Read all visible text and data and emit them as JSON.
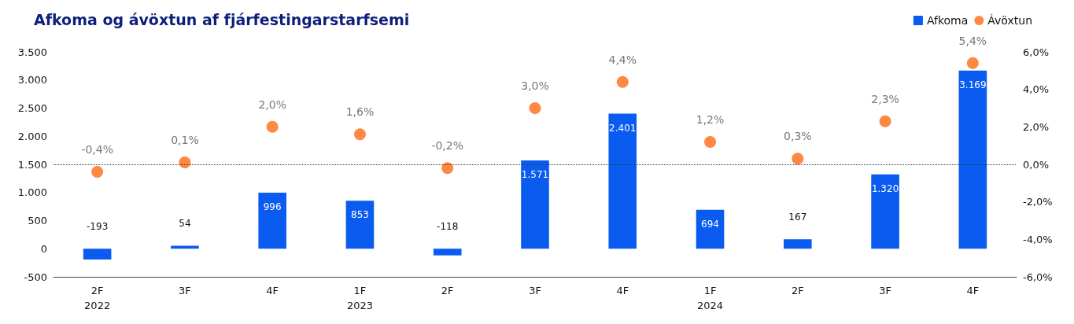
{
  "chart_data": {
    "type": "bar",
    "title": "Afkoma og ávöxtun af fjárfestingarstarfsemi",
    "categories": [
      "2F\n2022",
      "3F",
      "4F",
      "1F\n2023",
      "2F",
      "3F",
      "4F",
      "1F\n2024",
      "2F",
      "3F",
      "4F"
    ],
    "series": [
      {
        "name": "Afkoma",
        "color": "#0a5cf0",
        "values": [
          -193,
          54,
          996,
          853,
          -118,
          1571,
          2401,
          694,
          167,
          1320,
          3169
        ],
        "value_labels": [
          "-193",
          "54",
          "996",
          "853",
          "-118",
          "1.571",
          "2.401",
          "694",
          "167",
          "1.320",
          "3.169"
        ]
      },
      {
        "name": "Ávöxtun",
        "type": "scatter",
        "axis": "y2",
        "color": "#ff6a13",
        "marker": "circle",
        "values": [
          -0.4,
          0.1,
          2.0,
          1.6,
          -0.2,
          3.0,
          4.4,
          1.2,
          0.3,
          2.3,
          5.4
        ],
        "value_labels": [
          "-0,4%",
          "0,1%",
          "2,0%",
          "1,6%",
          "-0,2%",
          "3,0%",
          "4,4%",
          "1,2%",
          "0,3%",
          "2,3%",
          "5,4%"
        ]
      }
    ],
    "ylim": [
      -500,
      3500
    ],
    "yticks": [
      {
        "value": -500,
        "label": "-500"
      },
      0,
      500,
      {
        "value": 1000,
        "label": "1.000"
      },
      {
        "value": 1500,
        "label": "1.500"
      },
      {
        "value": 2000,
        "label": "2.000"
      },
      {
        "value": 2500,
        "label": "2.500"
      },
      {
        "value": 3000,
        "label": "3.000"
      },
      {
        "value": 3500,
        "label": "3.500"
      }
    ],
    "y2lim": [
      -6,
      6
    ],
    "y2ticks": [
      {
        "value": -6,
        "label": "-6,0%"
      },
      {
        "value": -4,
        "label": "-4,0%"
      },
      {
        "value": -2,
        "label": "-2,0%"
      },
      {
        "value": 0,
        "label": "0,0%"
      },
      {
        "value": 2,
        "label": "2,0%"
      },
      {
        "value": 4,
        "label": "4,0%"
      },
      {
        "value": 6,
        "label": "6,0%"
      }
    ],
    "ref_lines": [
      {
        "axis": "y2",
        "value": 0,
        "label": null,
        "color": "#333333",
        "line_style": "dotted"
      }
    ],
    "legend": "top right",
    "grid": false
  }
}
